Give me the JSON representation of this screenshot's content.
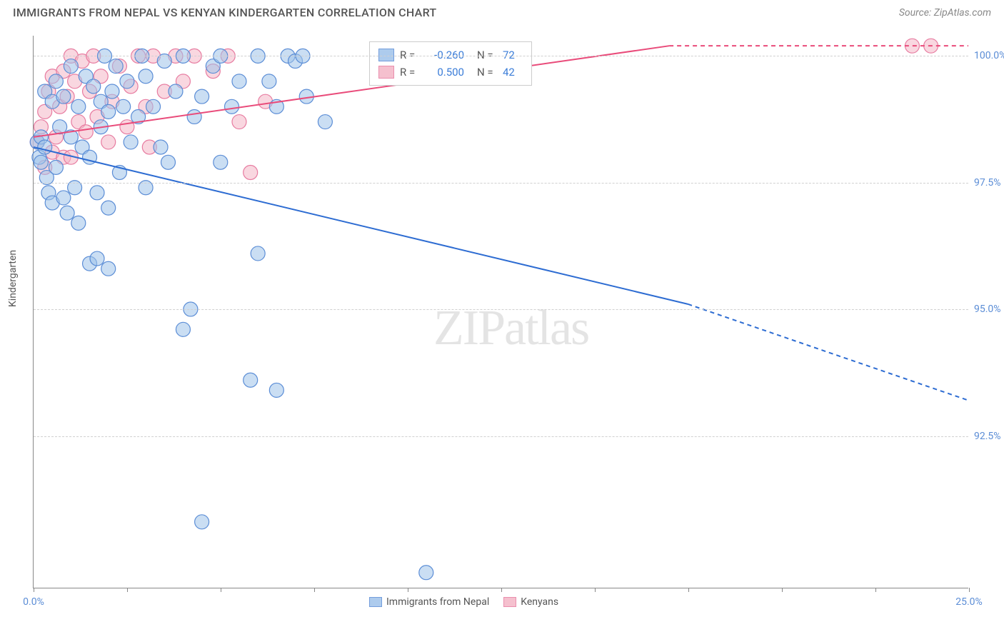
{
  "header": {
    "title": "IMMIGRANTS FROM NEPAL VS KENYAN KINDERGARTEN CORRELATION CHART",
    "source_label": "Source: ",
    "source_name": "ZipAtlas.com"
  },
  "watermark": "ZIPatlas",
  "chart": {
    "type": "scatter",
    "ylabel": "Kindergarten",
    "xlim": [
      0,
      25
    ],
    "ylim": [
      89.5,
      100.4
    ],
    "xtick_positions": [
      0,
      2.5,
      5,
      7.5,
      10,
      12.5,
      15,
      17.5,
      20,
      22.5,
      25
    ],
    "xtick_labels": {
      "0": "0.0%",
      "25": "25.0%"
    },
    "ytick_positions": [
      92.5,
      95.0,
      97.5,
      100.0
    ],
    "ytick_labels": [
      "92.5%",
      "95.0%",
      "97.5%",
      "100.0%"
    ],
    "grid_color": "#d0d0d0",
    "axis_color": "#888888",
    "background_color": "#ffffff",
    "series": {
      "nepal": {
        "label": "Immigrants from Nepal",
        "marker_fill": "#9fc3ea",
        "marker_stroke": "#5b8dd6",
        "marker_fill_opacity": 0.55,
        "marker_radius": 10,
        "line_color": "#2d6cd2",
        "line_width": 2,
        "correlation_r": "-0.260",
        "correlation_n": "72",
        "trend_x1": 0,
        "trend_y1": 98.2,
        "trend_x2_solid": 17.5,
        "trend_y2_solid": 95.1,
        "trend_x2_dash": 25,
        "trend_y2_dash": 93.2,
        "points": [
          [
            0.1,
            98.3
          ],
          [
            0.15,
            98.0
          ],
          [
            0.2,
            98.4
          ],
          [
            0.2,
            97.9
          ],
          [
            0.3,
            99.3
          ],
          [
            0.3,
            98.2
          ],
          [
            0.35,
            97.6
          ],
          [
            0.4,
            97.3
          ],
          [
            0.5,
            99.1
          ],
          [
            0.5,
            97.1
          ],
          [
            0.6,
            99.5
          ],
          [
            0.6,
            97.8
          ],
          [
            0.7,
            98.6
          ],
          [
            0.8,
            99.2
          ],
          [
            0.8,
            97.2
          ],
          [
            0.9,
            96.9
          ],
          [
            1.0,
            99.8
          ],
          [
            1.0,
            98.4
          ],
          [
            1.1,
            97.4
          ],
          [
            1.2,
            99.0
          ],
          [
            1.2,
            96.7
          ],
          [
            1.3,
            98.2
          ],
          [
            1.4,
            99.6
          ],
          [
            1.5,
            98.0
          ],
          [
            1.5,
            95.9
          ],
          [
            1.6,
            99.4
          ],
          [
            1.7,
            97.3
          ],
          [
            1.8,
            99.1
          ],
          [
            1.8,
            98.6
          ],
          [
            1.9,
            100.0
          ],
          [
            2.0,
            98.9
          ],
          [
            2.0,
            97.0
          ],
          [
            2.1,
            99.3
          ],
          [
            2.2,
            99.8
          ],
          [
            2.3,
            97.7
          ],
          [
            2.4,
            99.0
          ],
          [
            2.5,
            99.5
          ],
          [
            2.6,
            98.3
          ],
          [
            2.8,
            98.8
          ],
          [
            2.9,
            100.0
          ],
          [
            3.0,
            97.4
          ],
          [
            3.0,
            99.6
          ],
          [
            3.2,
            99.0
          ],
          [
            3.4,
            98.2
          ],
          [
            3.5,
            99.9
          ],
          [
            3.6,
            97.9
          ],
          [
            3.8,
            99.3
          ],
          [
            4.0,
            100.0
          ],
          [
            4.0,
            94.6
          ],
          [
            4.3,
            98.8
          ],
          [
            4.5,
            99.2
          ],
          [
            4.8,
            99.8
          ],
          [
            5.0,
            100.0
          ],
          [
            5.0,
            97.9
          ],
          [
            5.3,
            99.0
          ],
          [
            5.5,
            99.5
          ],
          [
            5.8,
            93.6
          ],
          [
            6.0,
            100.0
          ],
          [
            6.0,
            96.1
          ],
          [
            6.3,
            99.5
          ],
          [
            6.5,
            99.0
          ],
          [
            6.5,
            93.4
          ],
          [
            6.8,
            100.0
          ],
          [
            7.0,
            99.9
          ],
          [
            7.2,
            100.0
          ],
          [
            7.3,
            99.2
          ],
          [
            4.5,
            90.8
          ],
          [
            4.2,
            95.0
          ],
          [
            10.5,
            89.8
          ],
          [
            7.8,
            98.7
          ],
          [
            2.0,
            95.8
          ],
          [
            1.7,
            96.0
          ]
        ]
      },
      "kenya": {
        "label": "Kenyans",
        "marker_fill": "#f4b6c6",
        "marker_stroke": "#e77ba0",
        "marker_fill_opacity": 0.55,
        "marker_radius": 10,
        "line_color": "#e94b7a",
        "line_width": 2,
        "correlation_r": "0.500",
        "correlation_n": "42",
        "trend_x1": 0,
        "trend_y1": 98.4,
        "trend_x2_solid": 17.0,
        "trend_y2_solid": 100.2,
        "trend_x2_dash": 25,
        "trend_y2_dash": 100.2,
        "points": [
          [
            0.1,
            98.3
          ],
          [
            0.2,
            98.6
          ],
          [
            0.3,
            97.8
          ],
          [
            0.3,
            98.9
          ],
          [
            0.4,
            99.3
          ],
          [
            0.5,
            98.1
          ],
          [
            0.5,
            99.6
          ],
          [
            0.6,
            98.4
          ],
          [
            0.7,
            99.0
          ],
          [
            0.8,
            99.7
          ],
          [
            0.8,
            98.0
          ],
          [
            0.9,
            99.2
          ],
          [
            1.0,
            100.0
          ],
          [
            1.0,
            98.0
          ],
          [
            1.1,
            99.5
          ],
          [
            1.2,
            98.7
          ],
          [
            1.3,
            99.9
          ],
          [
            1.4,
            98.5
          ],
          [
            1.5,
            99.3
          ],
          [
            1.6,
            100.0
          ],
          [
            1.7,
            98.8
          ],
          [
            1.8,
            99.6
          ],
          [
            2.0,
            98.3
          ],
          [
            2.1,
            99.1
          ],
          [
            2.3,
            99.8
          ],
          [
            2.5,
            98.6
          ],
          [
            2.6,
            99.4
          ],
          [
            2.8,
            100.0
          ],
          [
            3.0,
            99.0
          ],
          [
            3.1,
            98.2
          ],
          [
            3.2,
            100.0
          ],
          [
            3.5,
            99.3
          ],
          [
            3.8,
            100.0
          ],
          [
            4.0,
            99.5
          ],
          [
            4.3,
            100.0
          ],
          [
            4.8,
            99.7
          ],
          [
            5.2,
            100.0
          ],
          [
            5.5,
            98.7
          ],
          [
            5.8,
            97.7
          ],
          [
            6.2,
            99.1
          ],
          [
            23.5,
            100.2
          ],
          [
            24.0,
            100.2
          ]
        ]
      }
    }
  }
}
